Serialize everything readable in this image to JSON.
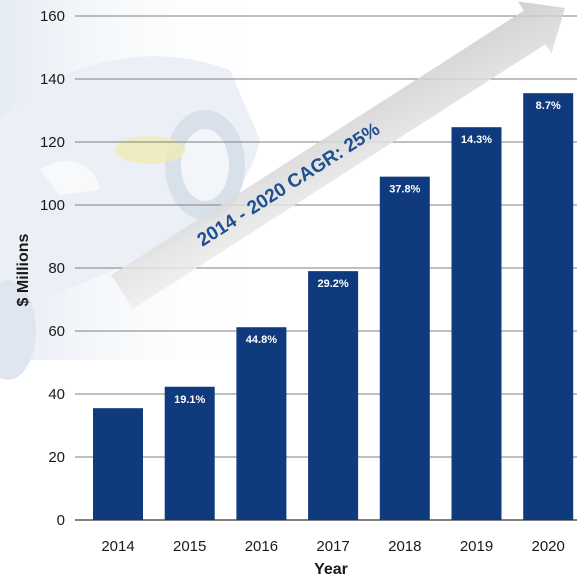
{
  "chart_data": {
    "type": "bar",
    "categories": [
      "2014",
      "2015",
      "2016",
      "2017",
      "2018",
      "2019",
      "2020"
    ],
    "values": [
      35.5,
      42.3,
      61.2,
      79.0,
      109.0,
      124.7,
      135.5
    ],
    "growth_labels": [
      "",
      "19.1%",
      "44.8%",
      "29.2%",
      "37.8%",
      "14.3%",
      "8.7%"
    ],
    "xlabel": "Year",
    "ylabel": "$ Millions",
    "ylim": [
      0,
      160
    ],
    "yticks": [
      0,
      20,
      40,
      60,
      80,
      100,
      120,
      140,
      160
    ],
    "grid": true,
    "annotation": "2014 - 2020 CAGR: 25%",
    "colors": {
      "bar": "#0f3a7d",
      "grid": "#7f7f7f",
      "annotation_text": "#1d4f91",
      "arrow": "#d4d4d4"
    }
  }
}
